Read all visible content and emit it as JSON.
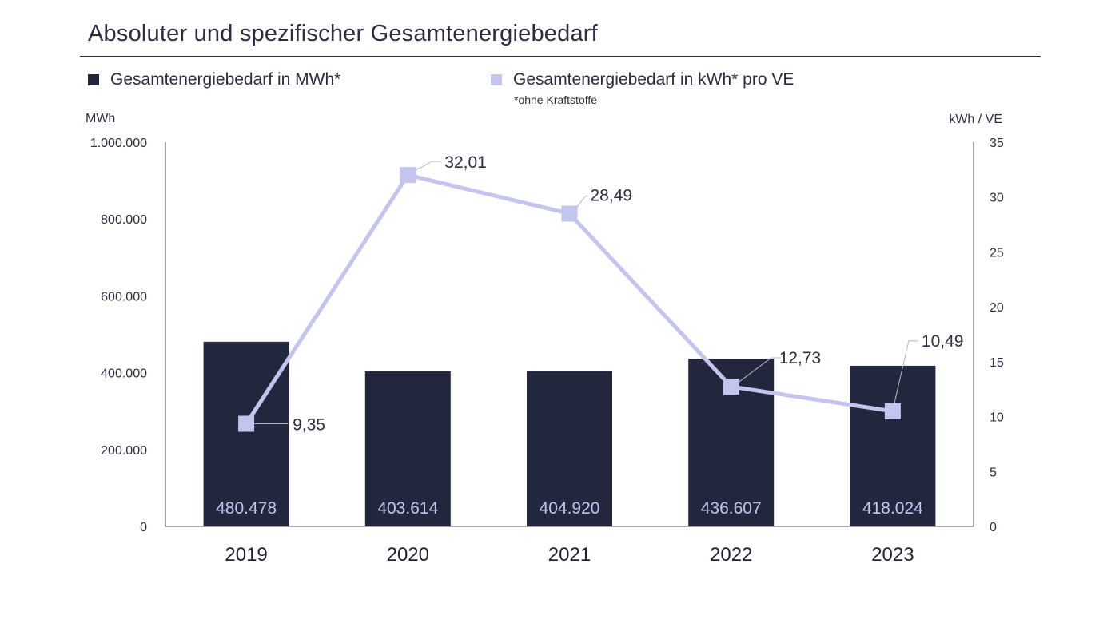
{
  "title": "Absoluter und spezifischer Gesamtenergiebedarf",
  "legend": {
    "bars": "Gesamtenergiebedarf in MWh*",
    "line": "Gesamtenergiebedarf in kWh* pro VE",
    "footnote": "*ohne Kraftstoffe"
  },
  "colors": {
    "bar": "#23273d",
    "line": "#c3c5ee",
    "barLabel": "#c3c5ee",
    "axis": "#555555"
  },
  "chart_data": {
    "type": "bar",
    "title": "Absoluter und spezifischer Gesamtenergiebedarf",
    "categories": [
      "2019",
      "2020",
      "2021",
      "2022",
      "2023"
    ],
    "series": [
      {
        "name": "Gesamtenergiebedarf in MWh*",
        "type": "bar",
        "axis": "left",
        "values": [
          480478,
          403614,
          404920,
          436607,
          418024
        ],
        "labels": [
          "480.478",
          "403.614",
          "404.920",
          "436.607",
          "418.024"
        ]
      },
      {
        "name": "Gesamtenergiebedarf in kWh* pro VE",
        "type": "line",
        "axis": "right",
        "values": [
          9.35,
          32.01,
          28.49,
          12.73,
          10.49
        ],
        "labels": [
          "9,35",
          "32,01",
          "28,49",
          "12,73",
          "10,49"
        ]
      }
    ],
    "y_left": {
      "label": "MWh",
      "ylim": [
        0,
        1000000
      ],
      "ticks": [
        0,
        200000,
        400000,
        600000,
        800000,
        1000000
      ],
      "tick_labels": [
        "0",
        "200.000",
        "400.000",
        "600.000",
        "800.000",
        "1.000.000"
      ]
    },
    "y_right": {
      "label": "kWh / VE",
      "ylim": [
        0,
        35
      ],
      "ticks": [
        0,
        5,
        10,
        15,
        20,
        25,
        30,
        35
      ],
      "tick_labels": [
        "0",
        "5",
        "10",
        "15",
        "20",
        "25",
        "30",
        "35"
      ]
    },
    "grid": false,
    "legend_position": "top"
  }
}
